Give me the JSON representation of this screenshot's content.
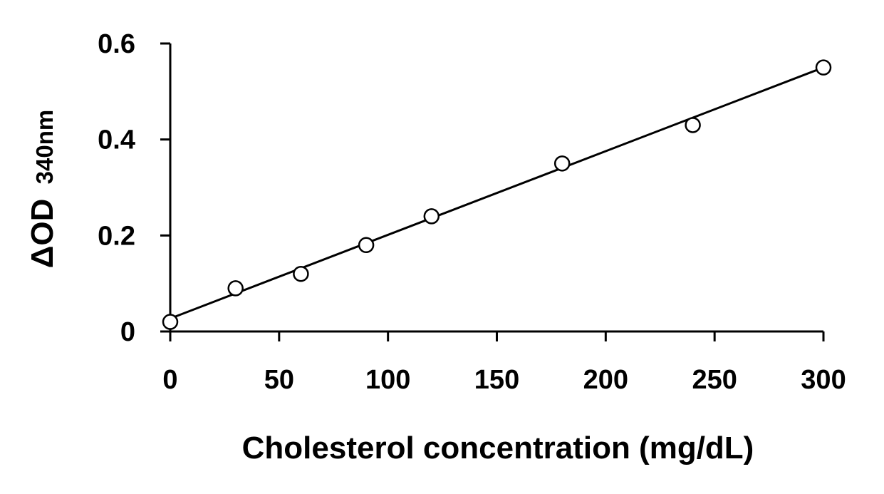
{
  "chart_data": {
    "type": "scatter",
    "title": "",
    "xlabel": "Cholesterol concentration (mg/dL)",
    "ylabel_main": "ΔOD",
    "ylabel_sub": "340nm",
    "xlim": [
      0,
      300
    ],
    "ylim": [
      0,
      0.6
    ],
    "x_ticks": [
      0,
      50,
      100,
      150,
      200,
      250,
      300
    ],
    "x_tick_labels": [
      "0",
      "50",
      "100",
      "150",
      "200",
      "250",
      "300"
    ],
    "y_ticks": [
      0,
      0.2,
      0.4,
      0.6
    ],
    "y_tick_labels": [
      "0",
      "0.2",
      "0.4",
      "0.6"
    ],
    "grid": false,
    "legend": "none",
    "series": [
      {
        "marker": "open-circle",
        "x": [
          0,
          30,
          60,
          90,
          120,
          180,
          240,
          300
        ],
        "y": [
          0.02,
          0.09,
          0.12,
          0.18,
          0.24,
          0.35,
          0.43,
          0.55
        ]
      }
    ],
    "trendline": {
      "type": "linear",
      "x": [
        0,
        300
      ],
      "y": [
        0.027,
        0.55
      ]
    },
    "colors": {
      "axis": "#000000",
      "line": "#000000",
      "marker_stroke": "#000000",
      "marker_fill": "#ffffff"
    }
  }
}
